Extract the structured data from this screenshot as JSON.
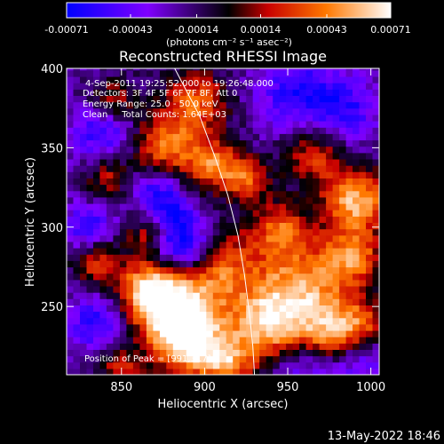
{
  "colorbar": {
    "ticks": [
      "-0.00071",
      "-0.00043",
      "-0.00014",
      "0.00014",
      "0.00043",
      "0.00071"
    ],
    "values": [
      -0.00071,
      -0.00043,
      -0.00014,
      0.00014,
      0.00043,
      0.00071
    ],
    "unit_label": "(photons cm⁻² s⁻¹ asec⁻²)"
  },
  "chart_data": {
    "type": "heatmap",
    "title": "Reconstructed RHESSI Image",
    "xlabel": "Heliocentric X (arcsec)",
    "ylabel": "Heliocentric Y (arcsec)",
    "xlim": [
      817,
      1005
    ],
    "ylim": [
      207,
      400
    ],
    "xticks": [
      850,
      900,
      950,
      1000
    ],
    "yticks": [
      250,
      300,
      350,
      400
    ],
    "xtick_labels": [
      "850",
      "900",
      "950",
      "1000"
    ],
    "ytick_labels": [
      "250",
      "300",
      "350",
      "400"
    ],
    "value_range": [
      -0.00071,
      0.00071
    ],
    "colormap": [
      "#0000ff",
      "#7f00ff",
      "#000000",
      "#c80000",
      "#ff7800",
      "#ffffff"
    ],
    "annotations": [
      "4-Sep-2011 19:25:52.000 to 19:26:48.000",
      "Detectors: 3F 4F 5F 6F 7F 8F, Att 0",
      "Energy Range: 25.0 - 50.0 keV",
      "Clean     Total Counts: 1.64E+03"
    ],
    "peak_label": "Position of Peak = [991,317]",
    "peak": [
      991,
      317
    ],
    "limb_line": [
      [
        882,
        400
      ],
      [
        897,
        370
      ],
      [
        906,
        345
      ],
      [
        914,
        320
      ],
      [
        920,
        295
      ],
      [
        924,
        270
      ],
      [
        927,
        245
      ],
      [
        929,
        225
      ],
      [
        930,
        207
      ]
    ]
  },
  "footer": {
    "timestamp": "13-May-2022 18:46"
  }
}
